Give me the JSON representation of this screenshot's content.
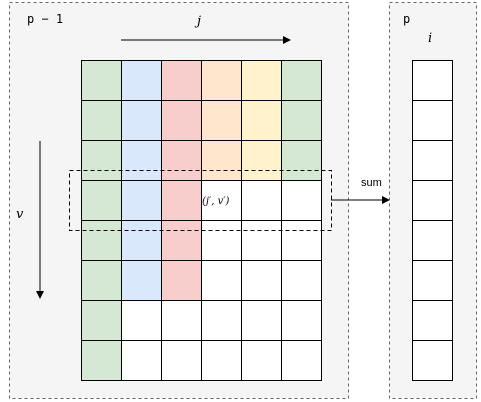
{
  "left_panel": {
    "title": "p − 1",
    "col_axis_label": "j",
    "row_axis_label": "v",
    "cell_label": "(j′, v′)",
    "rows": 8,
    "cols": 6,
    "colors": {
      "green": "#d5e8d4",
      "blue": "#dae8fc",
      "red": "#f8cecc",
      "orange": "#ffe6cc",
      "yellow": "#fff2cc",
      "white": "#ffffff"
    },
    "cell_colors": [
      [
        "green",
        "blue",
        "red",
        "orange",
        "yellow",
        "green"
      ],
      [
        "green",
        "blue",
        "red",
        "orange",
        "yellow",
        "green"
      ],
      [
        "green",
        "blue",
        "red",
        "orange",
        "yellow",
        "green"
      ],
      [
        "green",
        "blue",
        "red",
        "white",
        "white",
        "white"
      ],
      [
        "green",
        "blue",
        "red",
        "white",
        "white",
        "white"
      ],
      [
        "green",
        "blue",
        "red",
        "white",
        "white",
        "white"
      ],
      [
        "green",
        "white",
        "white",
        "white",
        "white",
        "white"
      ],
      [
        "green",
        "white",
        "white",
        "white",
        "white",
        "white"
      ]
    ],
    "labeled_cell": {
      "row": 3,
      "col": 3
    },
    "highlight_row": 3
  },
  "arrow_label": "sum",
  "right_panel": {
    "title": "p",
    "column_label": "i",
    "rows": 8
  },
  "panel_fill": "#f5f5f5",
  "border_color": "#666666"
}
